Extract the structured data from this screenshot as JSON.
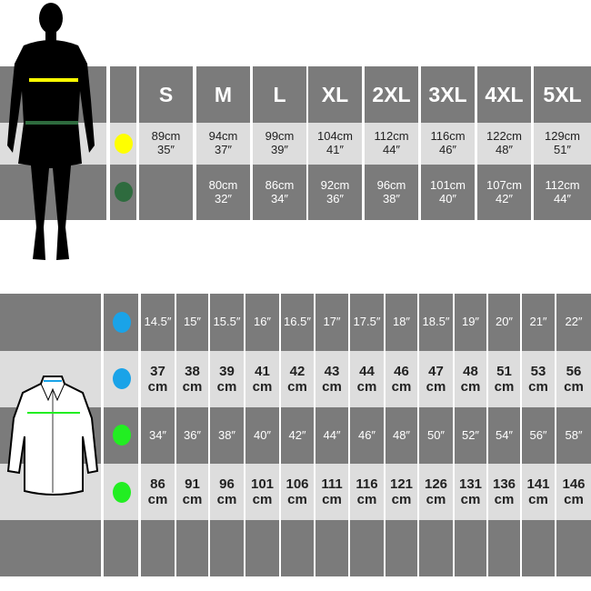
{
  "colors": {
    "dark_row": "#7b7b7b",
    "light_row": "#dddddd",
    "chest_marker": "#ffff00",
    "waist_marker": "#2e6b3e",
    "collar_marker": "#1aa3e8",
    "shirt_chest_marker": "#22ee22"
  },
  "top_table": {
    "sizes": [
      "S",
      "M",
      "L",
      "XL",
      "2XL",
      "3XL",
      "4XL",
      "5XL"
    ],
    "chest": [
      [
        "89cm",
        "35″"
      ],
      [
        "94cm",
        "37″"
      ],
      [
        "99cm",
        "39″"
      ],
      [
        "104cm",
        "41″"
      ],
      [
        "112cm",
        "44″"
      ],
      [
        "116cm",
        "46″"
      ],
      [
        "122cm",
        "48″"
      ],
      [
        "129cm",
        "51″"
      ]
    ],
    "waist": [
      [
        "",
        ""
      ],
      [
        "80cm",
        "32″"
      ],
      [
        "86cm",
        "34″"
      ],
      [
        "92cm",
        "36″"
      ],
      [
        "96cm",
        "38″"
      ],
      [
        "101cm",
        "40″"
      ],
      [
        "107cm",
        "42″"
      ],
      [
        "112cm",
        "44″"
      ]
    ]
  },
  "bottom_table": {
    "collar_in": [
      "14.5″",
      "15″",
      "15.5″",
      "16″",
      "16.5″",
      "17″",
      "17.5″",
      "18″",
      "18.5″",
      "19″",
      "20″",
      "21″",
      "22″"
    ],
    "collar_cm": [
      [
        "37",
        "cm"
      ],
      [
        "38",
        "cm"
      ],
      [
        "39",
        "cm"
      ],
      [
        "41",
        "cm"
      ],
      [
        "42",
        "cm"
      ],
      [
        "43",
        "cm"
      ],
      [
        "44",
        "cm"
      ],
      [
        "46",
        "cm"
      ],
      [
        "47",
        "cm"
      ],
      [
        "48",
        "cm"
      ],
      [
        "51",
        "cm"
      ],
      [
        "53",
        "cm"
      ],
      [
        "56",
        "cm"
      ]
    ],
    "chest_in": [
      "34″",
      "36″",
      "38″",
      "40″",
      "42″",
      "44″",
      "46″",
      "48″",
      "50″",
      "52″",
      "54″",
      "56″",
      "58″"
    ],
    "chest_cm": [
      [
        "86",
        "cm"
      ],
      [
        "91",
        "cm"
      ],
      [
        "96",
        "cm"
      ],
      [
        "101",
        "cm"
      ],
      [
        "106",
        "cm"
      ],
      [
        "111",
        "cm"
      ],
      [
        "116",
        "cm"
      ],
      [
        "121",
        "cm"
      ],
      [
        "126",
        "cm"
      ],
      [
        "131",
        "cm"
      ],
      [
        "136",
        "cm"
      ],
      [
        "141",
        "cm"
      ],
      [
        "146",
        "cm"
      ]
    ]
  }
}
